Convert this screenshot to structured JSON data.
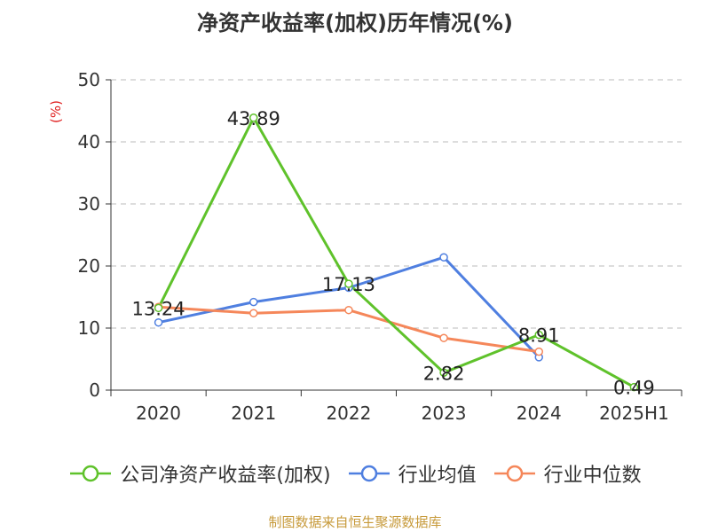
{
  "title": "净资产收益率(加权)历年情况(%)",
  "source": "制图数据来自恒生聚源数据库",
  "colors": {
    "company": "#5fc22b",
    "industry_avg": "#4f7fe0",
    "industry_median": "#f5875a",
    "grid": "#bbbbbb",
    "axis": "#333333",
    "unit": "#e02020"
  },
  "chart_data": {
    "type": "line",
    "title": "净资产收益率(加权)历年情况(%)",
    "ylabel": "(%)",
    "xlabel": "",
    "categories": [
      "2020",
      "2021",
      "2022",
      "2023",
      "2024",
      "2025H1"
    ],
    "ylim": [
      0,
      50
    ],
    "yticks": [
      0,
      10,
      20,
      30,
      40,
      50
    ],
    "grid": true,
    "legend": "bottom",
    "series": [
      {
        "name": "公司净资产收益率(加权)",
        "key": "company",
        "values": [
          13.24,
          43.89,
          17.13,
          2.82,
          8.91,
          0.49
        ],
        "labels": [
          "13.24",
          "43.89",
          "17.13",
          "2.82",
          "8.91",
          "0.49"
        ]
      },
      {
        "name": "行业均值",
        "key": "industry_avg",
        "values": [
          10.9,
          14.2,
          16.5,
          21.4,
          5.3,
          null
        ]
      },
      {
        "name": "行业中位数",
        "key": "industry_median",
        "values": [
          13.4,
          12.4,
          12.9,
          8.4,
          6.2,
          null
        ]
      }
    ]
  }
}
